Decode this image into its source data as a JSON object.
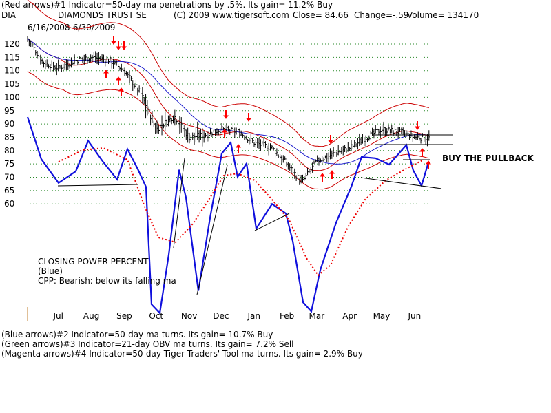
{
  "header": {
    "line1": "(Red arrows)#1 Indicator=50-day ma penetrations by .5%.  Its gain= 11.2% Buy",
    "ticker": "DIA",
    "name": "DIAMONDS TRUST SE",
    "copyright": "(C) 2009 www.tigersoft.com",
    "close": "Close=  84.66",
    "change": "Change=-.59",
    "volume": "Volume= 134170",
    "date_range": "6/16/2008-6/30/2009"
  },
  "annotations": {
    "buy_pullback": "BUY THE PULLBACK",
    "cpp_title": "CLOSING POWER PERCENT",
    "cpp_color": "(Blue)",
    "cpp_status": "CPP: Bearish: below its falling ma"
  },
  "footer": {
    "line1": "(Blue arrows)#2 Indicator=50-day ma turns.  Its gain= 10.7% Buy",
    "line2": "(Green arrows)#3 Indicator=21-day OBV ma turns.  Its gain= 7.2% Sell",
    "line3": "(Magenta arrows)#4 Indicator=50-day Tiger Traders' Tool ma turns.  Its gain= 2.9% Buy"
  },
  "colors": {
    "price": "#000000",
    "red_ma": "#cc0000",
    "blue_ma": "#1a1acc",
    "cpp": "#1010dd",
    "cpp_ma": "#ee0000",
    "arrow": "#ff0000",
    "grid": "#2a8a2a"
  },
  "chart_data": {
    "type": "line",
    "title": "DIAMONDS TRUST SE",
    "ylim": [
      60,
      120
    ],
    "yticks": [
      120,
      115,
      110,
      105,
      100,
      95,
      90,
      85,
      80,
      75,
      70,
      65,
      60
    ],
    "months": [
      "Jul",
      "Aug",
      "Sep",
      "Oct",
      "Nov",
      "Dec",
      "Jan",
      "Feb",
      "Mar",
      "Apr",
      "May",
      "Jun"
    ],
    "x": [
      "Jun-16",
      "Jul-01",
      "Jul-15",
      "Aug-01",
      "Aug-15",
      "Sep-01",
      "Sep-15",
      "Oct-01",
      "Oct-15",
      "Nov-01",
      "Nov-15",
      "Dec-01",
      "Dec-15",
      "Jan-01",
      "Jan-15",
      "Feb-01",
      "Feb-15",
      "Mar-01",
      "Mar-15",
      "Apr-01",
      "Apr-15",
      "May-01",
      "May-15",
      "Jun-01",
      "Jun-15",
      "Jun-30"
    ],
    "series": [
      {
        "values": [
          122,
          113,
          111,
          114,
          115,
          114,
          110,
          101,
          88,
          93,
          85,
          86,
          88,
          87,
          83,
          81,
          75,
          68,
          76,
          79,
          81,
          85,
          88,
          87,
          85,
          84.66
        ]
      }
    ],
    "red_arrows_down": [
      "Aug-28",
      "Sep-03",
      "Sep-08",
      "Dec-04",
      "Dec-22",
      "Mar-30",
      "Jun-10"
    ],
    "red_arrows_up": [
      "Aug-18",
      "Aug-24",
      "Sep-06",
      "Dec-01",
      "Dec-10",
      "Dec-18",
      "Mar-19",
      "Apr-01",
      "Jun-12"
    ]
  }
}
